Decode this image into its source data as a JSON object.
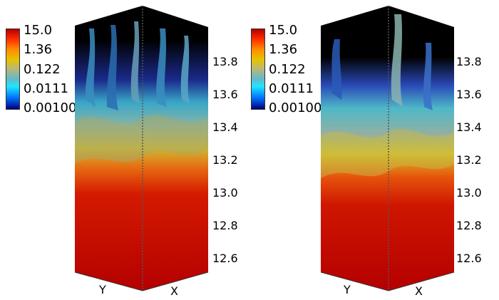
{
  "colorbar": {
    "labels": [
      "15.0",
      "1.36",
      "0.122",
      "0.0111",
      "0.00100"
    ],
    "colors": [
      "#b40000",
      "#ff8a00",
      "#b8b878",
      "#1ee6ff",
      "#000080"
    ]
  },
  "height_axis": {
    "ticks": [
      "13.8",
      "13.6",
      "13.4",
      "13.2",
      "13.0",
      "12.8",
      "12.6"
    ]
  },
  "face_axes": {
    "left": "Y",
    "right": "X"
  }
}
